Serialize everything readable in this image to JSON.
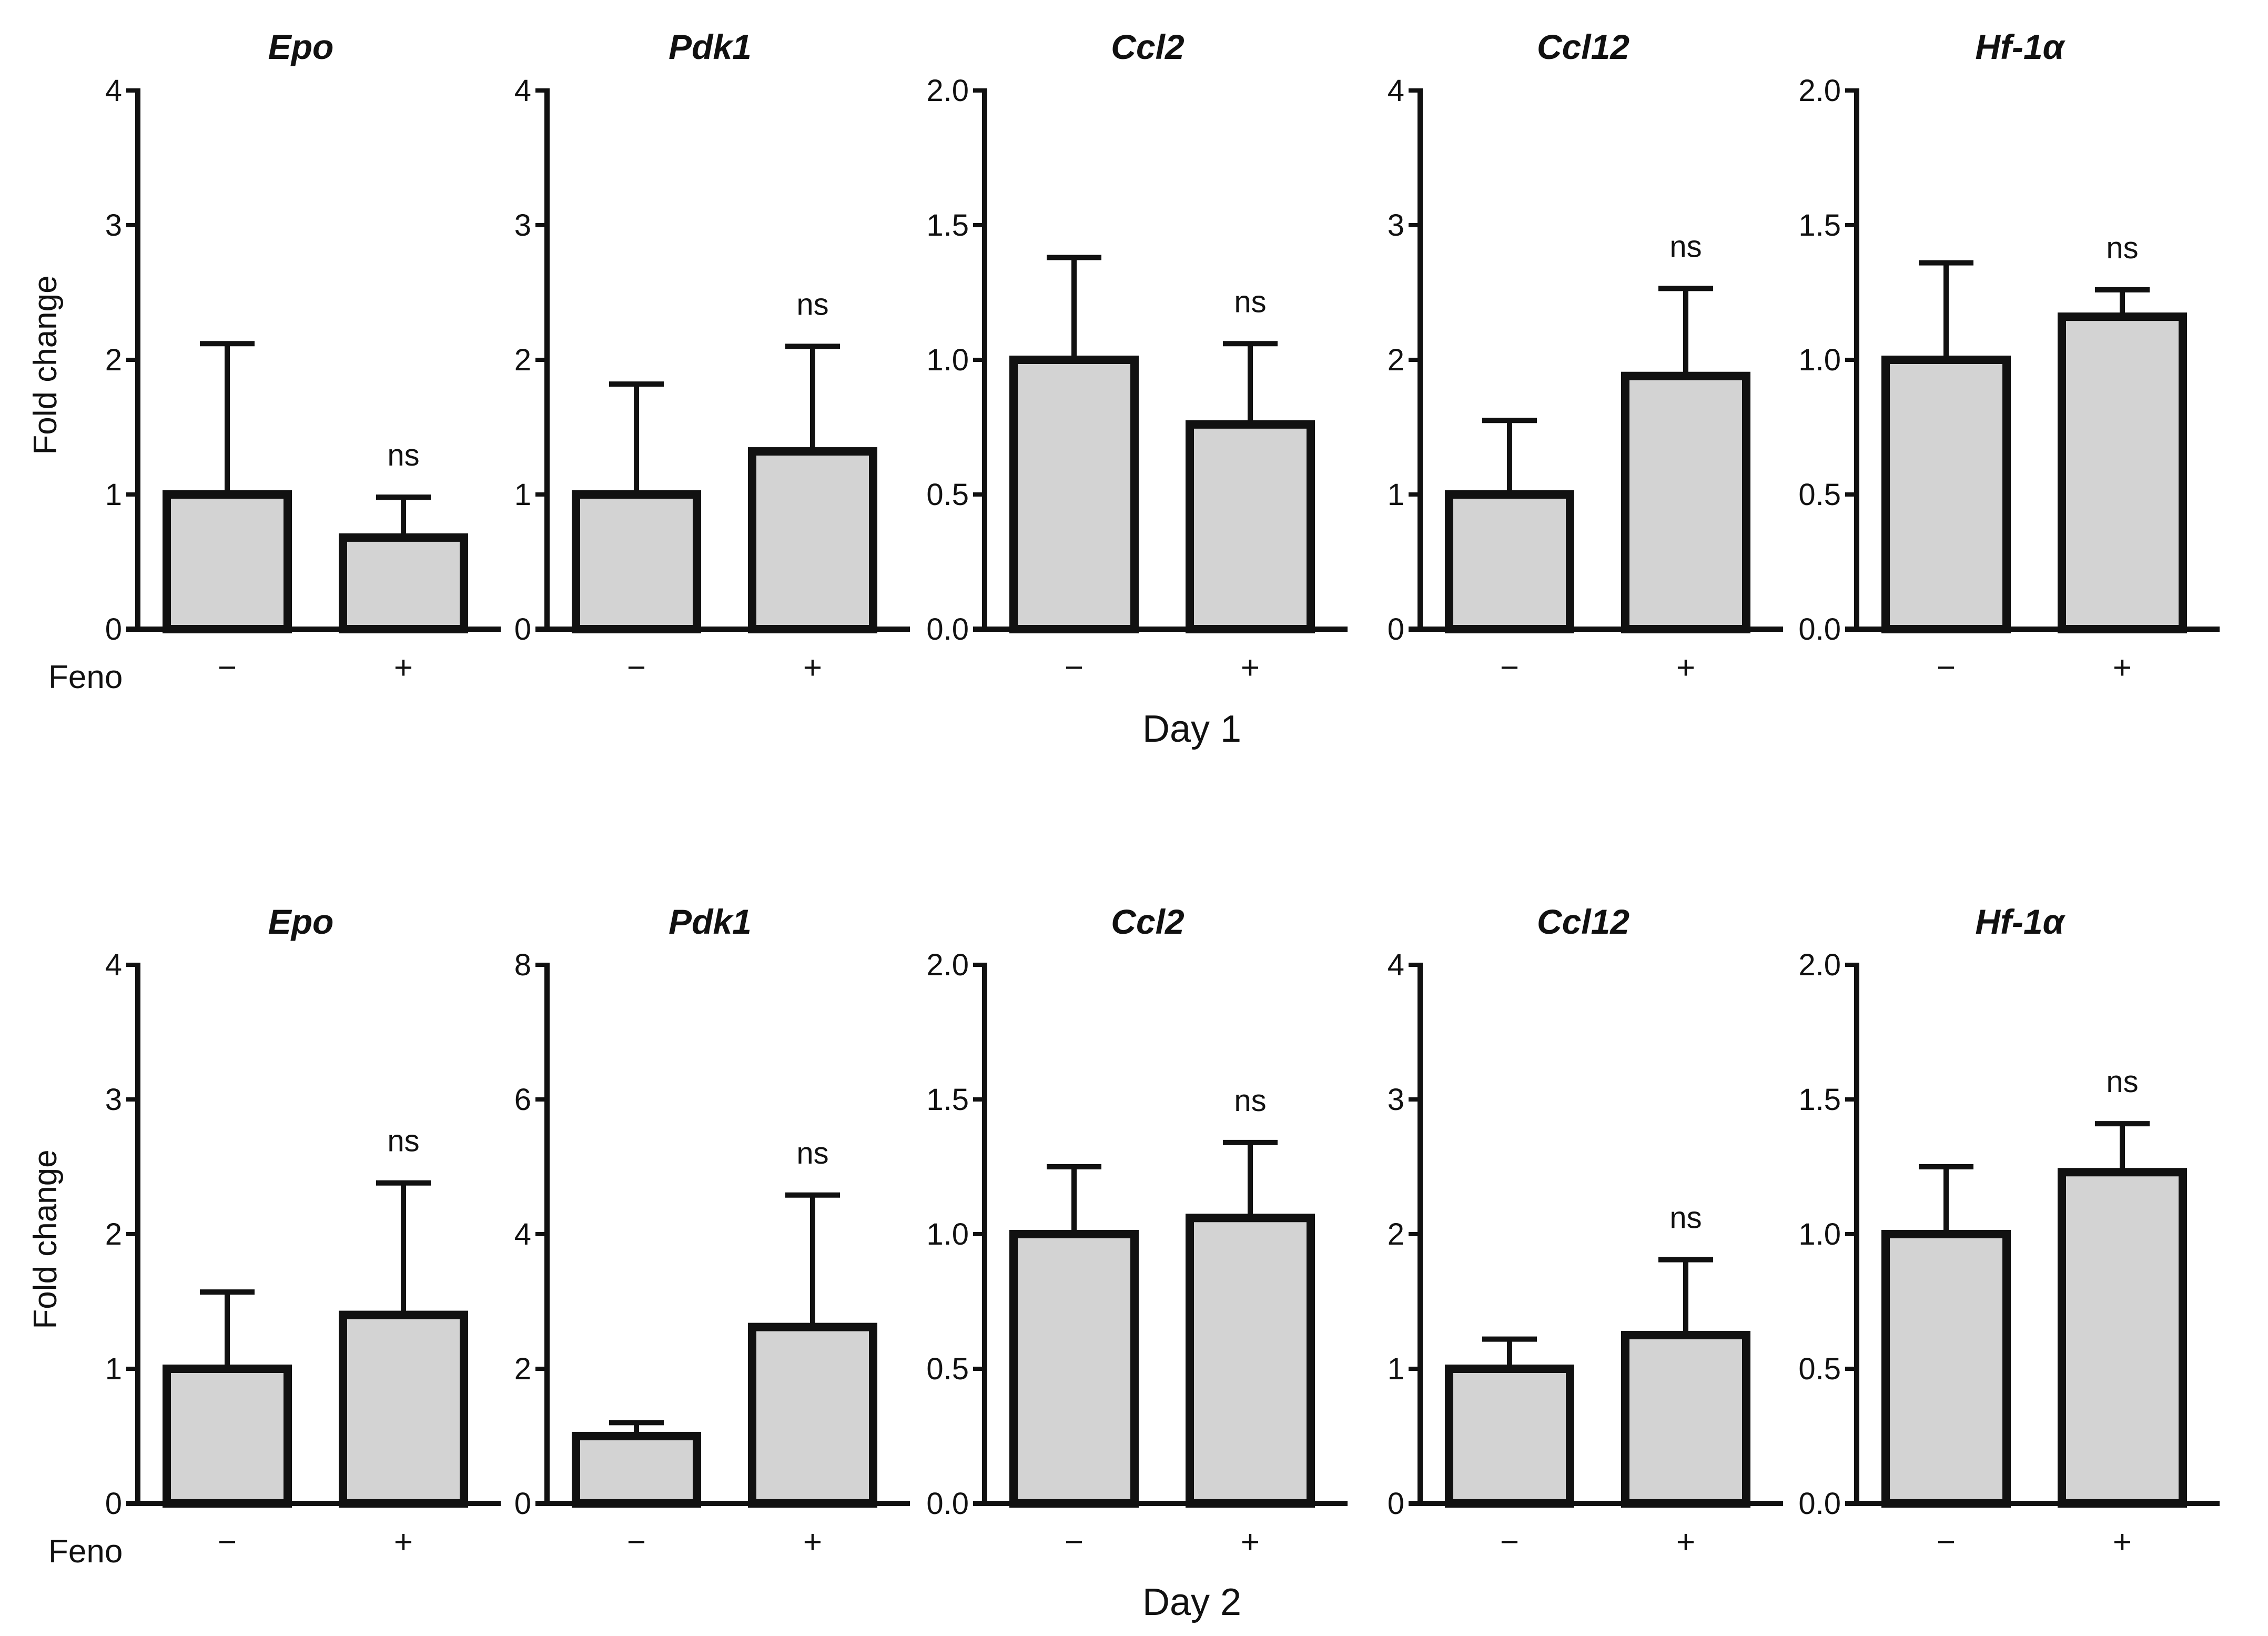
{
  "figure": {
    "row_labels": [
      "Day 1",
      "Day 2"
    ],
    "treatment_label": "Feno",
    "y_label": "Fold change"
  },
  "chart_data": [
    {
      "type": "bar",
      "row": "Day 1",
      "title": "Epo",
      "categories": [
        "−",
        "+"
      ],
      "values": [
        1.0,
        0.68
      ],
      "errors": [
        1.12,
        0.3
      ],
      "ylim": [
        0,
        4
      ],
      "yticks": [
        "0",
        "1",
        "2",
        "3",
        "4"
      ],
      "annotations": [
        "",
        "ns"
      ],
      "ylabel": "Fold change",
      "xlabel": "Feno",
      "bar_color": "#d3d3d3"
    },
    {
      "type": "bar",
      "row": "Day 1",
      "title": "Pdk1",
      "categories": [
        "−",
        "+"
      ],
      "values": [
        1.0,
        1.32
      ],
      "errors": [
        0.82,
        0.78
      ],
      "ylim": [
        0,
        4
      ],
      "yticks": [
        "0",
        "1",
        "2",
        "3",
        "4"
      ],
      "annotations": [
        "",
        "ns"
      ],
      "ylabel": "",
      "xlabel": "",
      "bar_color": "#d3d3d3"
    },
    {
      "type": "bar",
      "row": "Day 1",
      "title": "Ccl2",
      "categories": [
        "−",
        "+"
      ],
      "values": [
        1.0,
        0.76
      ],
      "errors": [
        0.38,
        0.3
      ],
      "ylim": [
        0,
        2
      ],
      "yticks": [
        "0.0",
        "0.5",
        "1.0",
        "1.5",
        "2.0"
      ],
      "annotations": [
        "",
        "ns"
      ],
      "ylabel": "",
      "xlabel": "",
      "bar_color": "#d3d3d3"
    },
    {
      "type": "bar",
      "row": "Day 1",
      "title": "Ccl12",
      "categories": [
        "−",
        "+"
      ],
      "values": [
        1.0,
        1.88
      ],
      "errors": [
        0.55,
        0.65
      ],
      "ylim": [
        0,
        4
      ],
      "yticks": [
        "0",
        "1",
        "2",
        "3",
        "4"
      ],
      "annotations": [
        "",
        "ns"
      ],
      "ylabel": "",
      "xlabel": "",
      "bar_color": "#d3d3d3"
    },
    {
      "type": "bar",
      "row": "Day 1",
      "title": "Hf-1α",
      "categories": [
        "−",
        "+"
      ],
      "values": [
        1.0,
        1.16
      ],
      "errors": [
        0.36,
        0.1
      ],
      "ylim": [
        0,
        2
      ],
      "yticks": [
        "0.0",
        "0.5",
        "1.0",
        "1.5",
        "2.0"
      ],
      "annotations": [
        "",
        "ns"
      ],
      "ylabel": "",
      "xlabel": "",
      "bar_color": "#d3d3d3"
    },
    {
      "type": "bar",
      "row": "Day 2",
      "title": "Epo",
      "categories": [
        "−",
        "+"
      ],
      "values": [
        1.0,
        1.4
      ],
      "errors": [
        0.57,
        0.98
      ],
      "ylim": [
        0,
        4
      ],
      "yticks": [
        "0",
        "1",
        "2",
        "3",
        "4"
      ],
      "annotations": [
        "",
        "ns"
      ],
      "ylabel": "Fold change",
      "xlabel": "Feno",
      "bar_color": "#d3d3d3"
    },
    {
      "type": "bar",
      "row": "Day 2",
      "title": "Pdk1",
      "categories": [
        "−",
        "+"
      ],
      "values": [
        1.0,
        2.62
      ],
      "errors": [
        0.2,
        1.96
      ],
      "ylim": [
        0,
        8
      ],
      "yticks": [
        "0",
        "2",
        "4",
        "6",
        "8"
      ],
      "annotations": [
        "",
        "ns"
      ],
      "ylabel": "",
      "xlabel": "",
      "bar_color": "#d3d3d3"
    },
    {
      "type": "bar",
      "row": "Day 2",
      "title": "Ccl2",
      "categories": [
        "−",
        "+"
      ],
      "values": [
        1.0,
        1.06
      ],
      "errors": [
        0.25,
        0.28
      ],
      "ylim": [
        0,
        2
      ],
      "yticks": [
        "0.0",
        "0.5",
        "1.0",
        "1.5",
        "2.0"
      ],
      "annotations": [
        "",
        "ns"
      ],
      "ylabel": "",
      "xlabel": "",
      "bar_color": "#d3d3d3"
    },
    {
      "type": "bar",
      "row": "Day 2",
      "title": "Ccl12",
      "categories": [
        "−",
        "+"
      ],
      "values": [
        1.0,
        1.25
      ],
      "errors": [
        0.22,
        0.56
      ],
      "ylim": [
        0,
        4
      ],
      "yticks": [
        "0",
        "1",
        "2",
        "3",
        "4"
      ],
      "annotations": [
        "",
        "ns"
      ],
      "ylabel": "",
      "xlabel": "",
      "bar_color": "#d3d3d3"
    },
    {
      "type": "bar",
      "row": "Day 2",
      "title": "Hf-1α",
      "categories": [
        "−",
        "+"
      ],
      "values": [
        1.0,
        1.23
      ],
      "errors": [
        0.25,
        0.18
      ],
      "ylim": [
        0,
        2
      ],
      "yticks": [
        "0.0",
        "0.5",
        "1.0",
        "1.5",
        "2.0"
      ],
      "annotations": [
        "",
        "ns"
      ],
      "ylabel": "",
      "xlabel": "",
      "bar_color": "#d3d3d3"
    }
  ]
}
